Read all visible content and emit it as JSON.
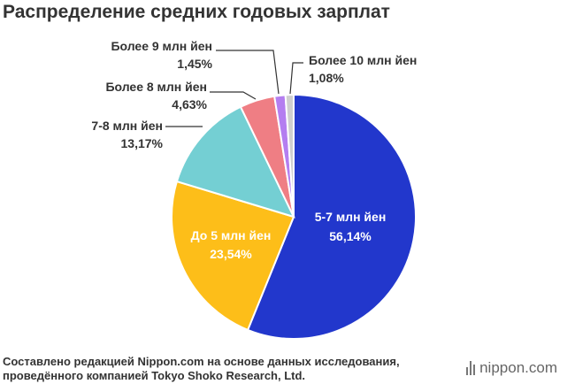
{
  "title": "Распределение средних годовых зарплат",
  "source": {
    "line1": "Составлено редакцией Nippon.com на основе данных исследования,",
    "line2": "проведённого компанией Tokyo Shoko Research, Ltd."
  },
  "brand": {
    "name": "nippon",
    "suffix": ".com"
  },
  "chart_data": {
    "type": "pie",
    "title": "Распределение средних годовых зарплат",
    "slices": [
      {
        "label": "5-7 млн йен",
        "value": 56.14,
        "value_label": "56,14%",
        "color": "#2237cc"
      },
      {
        "label": "До 5 млн йен",
        "value": 23.54,
        "value_label": "23,54%",
        "color": "#fdbe19"
      },
      {
        "label": "7-8 млн йен",
        "value": 13.17,
        "value_label": "13,17%",
        "color": "#74cfd3"
      },
      {
        "label": "Более 8 млн йен",
        "value": 4.63,
        "value_label": "4,63%",
        "color": "#ef7e84"
      },
      {
        "label": "Более 9 млн йен",
        "value": 1.45,
        "value_label": "1,45%",
        "color": "#b47ef0"
      },
      {
        "label": "Более 10 млн йен",
        "value": 1.08,
        "value_label": "1,08%",
        "color": "#cfcfcf"
      }
    ],
    "start": "12 o'clock",
    "direction": "clockwise",
    "legend": "none"
  }
}
